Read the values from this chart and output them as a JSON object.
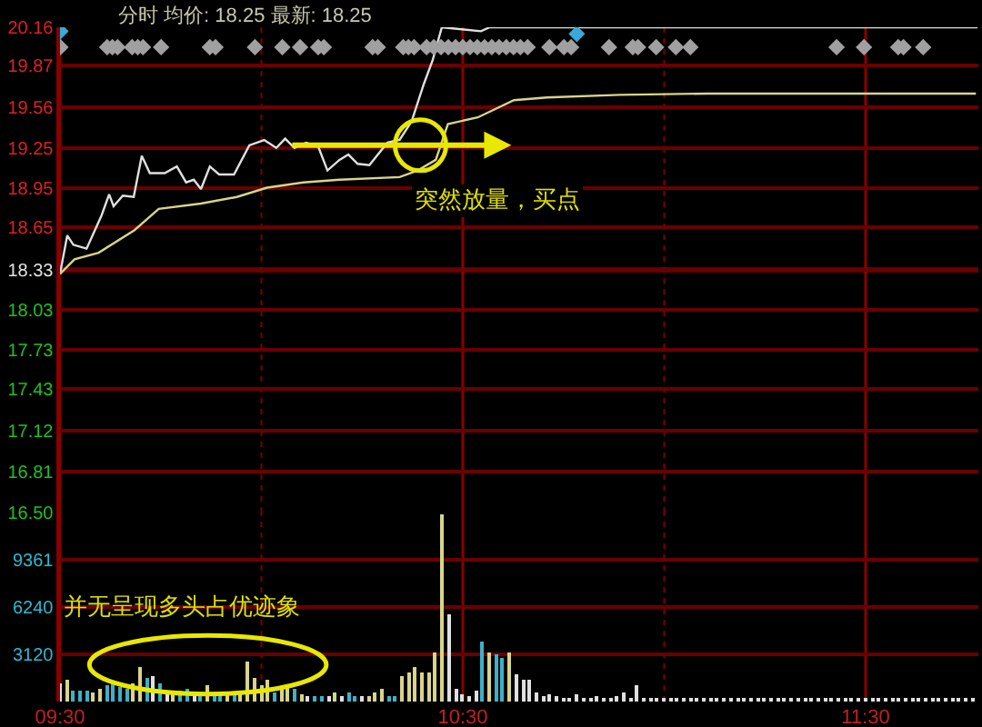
{
  "chart_data": [
    {
      "type": "line",
      "title": "分时 均价: 18.25 最新: 18.25",
      "xlim": [
        9.5,
        11.78
      ],
      "xticks": [
        9.5,
        10,
        10.5,
        11,
        11.5
      ],
      "ylim": [
        16.5,
        20.16
      ],
      "yticks": [
        {
          "value": 16.5,
          "label": "16.50"
        },
        16.81,
        17.12,
        17.43,
        17.73,
        18.03,
        18.33,
        18.65,
        18.95,
        19.25,
        19.56,
        19.87,
        20.16
      ],
      "tick_labels": "y",
      "grid": true,
      "marker": "none",
      "line_style": "solid",
      "ref_lines": [
        {
          "axis": "y",
          "value": 18.33,
          "color": "#b00000"
        }
      ],
      "series": [
        {
          "type": "line",
          "color": "#e0e0e0",
          "x": [
            9.5,
            9.518,
            9.533,
            9.566,
            9.603,
            9.622,
            9.633,
            9.656,
            9.683,
            9.703,
            9.723,
            9.76,
            9.79,
            9.813,
            9.832,
            9.85,
            9.872,
            9.895,
            9.932,
            9.97,
            10.007,
            10.037,
            10.059,
            10.082,
            10.111,
            10.141,
            10.164,
            10.194,
            10.216,
            10.239,
            10.268,
            10.313,
            10.343,
            10.373,
            10.403,
            10.425,
            10.448,
            10.545,
            10.567,
            11.778
          ],
          "values": [
            18.3,
            18.59,
            18.52,
            18.49,
            18.74,
            18.9,
            18.81,
            18.89,
            18.88,
            19.19,
            19.06,
            19.06,
            19.11,
            18.99,
            19.01,
            18.94,
            19.11,
            19.05,
            19.05,
            19.27,
            19.31,
            19.25,
            19.32,
            19.25,
            19.29,
            19.26,
            19.08,
            19.16,
            19.2,
            19.13,
            19.12,
            19.29,
            19.31,
            19.45,
            19.73,
            19.91,
            20.16,
            20.13,
            20.16,
            20.16
          ]
        },
        {
          "type": "line",
          "color": "#d8d48a",
          "x": [
            9.5,
            9.536,
            9.596,
            9.685,
            9.745,
            9.85,
            9.939,
            10.014,
            10.104,
            10.194,
            10.343,
            10.388,
            10.433,
            10.463,
            10.537,
            10.627,
            10.709,
            10.889,
            11.105,
            11.774
          ],
          "values": [
            18.3,
            18.41,
            18.46,
            18.63,
            18.79,
            18.83,
            18.88,
            18.95,
            18.99,
            19.01,
            19.03,
            19.08,
            19.16,
            19.43,
            19.48,
            19.61,
            19.63,
            19.65,
            19.66,
            19.66
          ]
        },
        {
          "type": "scatter",
          "marker": "diamond",
          "color": "#a0a0a0",
          "x": [
            9.501,
            9.617,
            9.63,
            9.643,
            9.679,
            9.693,
            9.706,
            9.751,
            9.872,
            9.886,
            9.984,
            10.052,
            10.096,
            10.141,
            10.155,
            10.276,
            10.289,
            10.352,
            10.365,
            10.379,
            10.41,
            10.428,
            10.446,
            10.464,
            10.482,
            10.5,
            10.518,
            10.536,
            10.554,
            10.572,
            10.59,
            10.608,
            10.626,
            10.643,
            10.661,
            10.715,
            10.751,
            10.769,
            10.863,
            10.922,
            10.935,
            10.98,
            11.029,
            11.065,
            11.428,
            11.496,
            11.581,
            11.594,
            11.643
          ],
          "values": [
            20.01,
            20.01,
            20.01,
            20.01,
            20.01,
            20.01,
            20.01,
            20.01,
            20.01,
            20.01,
            20.01,
            20.01,
            20.01,
            20.01,
            20.01,
            20.01,
            20.01,
            20.01,
            20.01,
            20.01,
            20.01,
            20.01,
            20.01,
            20.01,
            20.01,
            20.01,
            20.01,
            20.01,
            20.01,
            20.01,
            20.01,
            20.01,
            20.01,
            20.01,
            20.01,
            20.01,
            20.01,
            20.01,
            20.01,
            20.01,
            20.01,
            20.01,
            20.01,
            20.01,
            20.01,
            20.01,
            20.01,
            20.01,
            20.01
          ]
        },
        {
          "type": "scatter",
          "marker": "diamond",
          "color": "#3aa8d8",
          "x": [
            9.501,
            10.783
          ],
          "values": [
            20.13,
            20.11
          ]
        }
      ],
      "annotations": [
        {
          "text": "突然放量，买点",
          "x": 10.395,
          "y": 19.27
        }
      ]
    },
    {
      "type": "bar",
      "xlim": [
        9.5,
        11.78
      ],
      "xticks": [
        {
          "value": 9.5,
          "label": "09:30"
        },
        {
          "value": 10,
          "label": null
        },
        {
          "value": 10.5,
          "label": "10:30"
        },
        {
          "value": 11,
          "label": null
        },
        {
          "value": 11.5,
          "label": "11:30"
        }
      ],
      "ylim": [
        0,
        12481
      ],
      "yticks": [
        3120,
        6240,
        9361
      ],
      "grid": true,
      "x": [
        9.5,
        9.517,
        9.533,
        9.55,
        9.567,
        9.583,
        9.6,
        9.617,
        9.633,
        9.65,
        9.667,
        9.683,
        9.7,
        9.717,
        9.733,
        9.75,
        9.767,
        9.783,
        9.8,
        9.817,
        9.833,
        9.85,
        9.867,
        9.883,
        9.9,
        9.917,
        9.933,
        9.95,
        9.967,
        9.983,
        10,
        10.017,
        10.033,
        10.05,
        10.067,
        10.083,
        10.1,
        10.117,
        10.133,
        10.15,
        10.167,
        10.183,
        10.2,
        10.217,
        10.233,
        10.25,
        10.267,
        10.283,
        10.3,
        10.317,
        10.333,
        10.35,
        10.367,
        10.383,
        10.4,
        10.417,
        10.433,
        10.45,
        10.467,
        10.483,
        10.5,
        10.517,
        10.533,
        10.55,
        10.567,
        10.583,
        10.6,
        10.617,
        10.633,
        10.65,
        10.667,
        10.683,
        10.7,
        10.717,
        10.733,
        10.75,
        10.767,
        10.783,
        10.8,
        10.817,
        10.833,
        10.85,
        10.867,
        10.883,
        10.9,
        10.917,
        10.933,
        10.95,
        10.967,
        10.983,
        11,
        11.017,
        11.033,
        11.05,
        11.067,
        11.083,
        11.1,
        11.117,
        11.133,
        11.15,
        11.167,
        11.183,
        11.2,
        11.217,
        11.233,
        11.25,
        11.267,
        11.283,
        11.3,
        11.317,
        11.333,
        11.35,
        11.367,
        11.383,
        11.4,
        11.417,
        11.433,
        11.45,
        11.467,
        11.483,
        11.5,
        11.517,
        11.533,
        11.55,
        11.567,
        11.583,
        11.6,
        11.617,
        11.633,
        11.65,
        11.667,
        11.683,
        11.7,
        11.717,
        11.733,
        11.75,
        11.767
      ],
      "values": [
        1150,
        1440,
        740,
        740,
        740,
        660,
        820,
        1070,
        1150,
        940,
        900,
        1150,
        2300,
        1560,
        1640,
        1230,
        660,
        660,
        740,
        820,
        660,
        530,
        1070,
        570,
        570,
        570,
        570,
        660,
        2670,
        1560,
        1070,
        1480,
        570,
        940,
        990,
        820,
        530,
        330,
        330,
        410,
        330,
        660,
        330,
        660,
        410,
        330,
        330,
        660,
        820,
        410,
        330,
        1720,
        1970,
        2300,
        1970,
        1890,
        3280,
        12400,
        5750,
        820,
        530,
        410,
        740,
        4020,
        3280,
        3120,
        2870,
        3200,
        1770,
        1480,
        1480,
        660,
        410,
        530,
        330,
        250,
        250,
        530,
        250,
        250,
        330,
        250,
        250,
        330,
        660,
        250,
        1070,
        250,
        200,
        150,
        250,
        150,
        200,
        300,
        150,
        200,
        150,
        250,
        200,
        150,
        200,
        150,
        250,
        150,
        200,
        150,
        150,
        200,
        250,
        150,
        200,
        150,
        150,
        200,
        150,
        250,
        150,
        200,
        150,
        150,
        200,
        150,
        250,
        150,
        200,
        150,
        150,
        200,
        150,
        200,
        250,
        150,
        200,
        150,
        200,
        150,
        200
      ],
      "colors": [
        "#e0e0e0",
        "#d8d48a",
        "#40b0c8",
        "#40b0c8",
        "#40b0c8",
        "#d8d48a",
        "#d8d48a",
        "#40b0c8",
        "#40b0c8",
        "#40b0c8",
        "#40b0c8",
        "#d8d48a",
        "#d8d48a",
        "#40b0c8",
        "#e0e0e0",
        "#40b0c8",
        "#e0e0e0",
        "#d8d48a",
        "#40b0c8",
        "#40b0c8",
        "#e0e0e0",
        "#40b0c8",
        "#d8d48a",
        "#40b0c8",
        "#40b0c8",
        "#d8d48a",
        "#40b0c8",
        "#d8d48a",
        "#d8d48a",
        "#d8d48a",
        "#d8d48a",
        "#d8d48a",
        "#40b0c8",
        "#d8d48a",
        "#d8d48a",
        "#40b0c8",
        "#d8d48a",
        "#e0e0e0",
        "#40b0c8",
        "#40b0c8",
        "#e0e0e0",
        "#d8d48a",
        "#e0e0e0",
        "#40b0c8",
        "#40b0c8",
        "#e0e0e0",
        "#d8d48a",
        "#d8d48a",
        "#d8d48a",
        "#40b0c8",
        "#40b0c8",
        "#d8d48a",
        "#d8d48a",
        "#d8d48a",
        "#d8d48a",
        "#d8d48a",
        "#d8d48a",
        "#d8d48a",
        "#e0e0e0",
        "#e0e0e0",
        "#e0e0e0",
        "#e0e0e0",
        "#e0e0e0",
        "#40b0c8",
        "#d8d48a",
        "#40b0c8",
        "#40b0c8",
        "#d8d48a",
        "#e0e0e0",
        "#e0e0e0",
        "#e0e0e0",
        "#e0e0e0",
        "#e0e0e0",
        "#e0e0e0",
        "#e0e0e0",
        "#e0e0e0",
        "#e0e0e0",
        "#e0e0e0",
        "#e0e0e0",
        "#e0e0e0",
        "#e0e0e0",
        "#e0e0e0",
        "#e0e0e0",
        "#e0e0e0",
        "#e0e0e0",
        "#e0e0e0",
        "#e0e0e0",
        "#e0e0e0",
        "#e0e0e0",
        "#e0e0e0",
        "#e0e0e0",
        "#e0e0e0",
        "#e0e0e0",
        "#e0e0e0",
        "#e0e0e0",
        "#e0e0e0",
        "#e0e0e0",
        "#e0e0e0",
        "#e0e0e0",
        "#e0e0e0",
        "#e0e0e0",
        "#e0e0e0",
        "#e0e0e0",
        "#e0e0e0",
        "#e0e0e0",
        "#e0e0e0",
        "#e0e0e0",
        "#e0e0e0",
        "#e0e0e0",
        "#e0e0e0",
        "#e0e0e0",
        "#e0e0e0",
        "#e0e0e0",
        "#e0e0e0",
        "#e0e0e0",
        "#e0e0e0",
        "#e0e0e0",
        "#e0e0e0",
        "#e0e0e0",
        "#e0e0e0",
        "#e0e0e0",
        "#e0e0e0",
        "#e0e0e0",
        "#e0e0e0",
        "#e0e0e0",
        "#e0e0e0",
        "#e0e0e0",
        "#e0e0e0",
        "#e0e0e0",
        "#e0e0e0",
        "#e0e0e0",
        "#e0e0e0",
        "#e0e0e0",
        "#e0e0e0",
        "#e0e0e0",
        "#e0e0e0",
        "#e0e0e0"
      ],
      "annotations": [
        "并无呈现多头占优迹象"
      ]
    }
  ]
}
